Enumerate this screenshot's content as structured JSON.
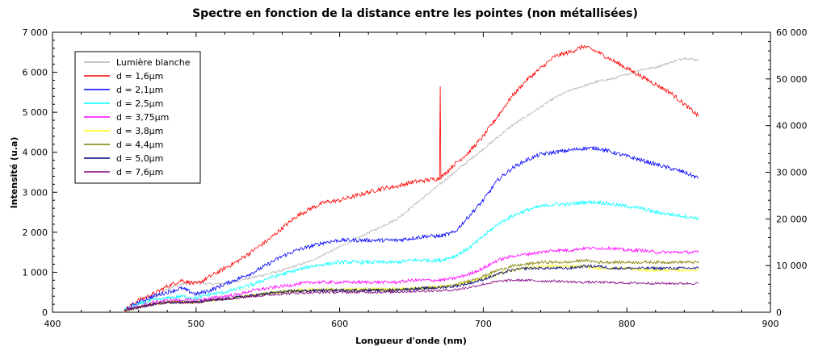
{
  "chart_data": {
    "type": "line",
    "title": "Spectre en fonction de la distance entre les pointes (non métallisées)",
    "xlabel": "Longueur d'onde (nm)",
    "ylabel": "Intensité (u.a)",
    "xlim": [
      400,
      900
    ],
    "ylim": [
      0,
      7000
    ],
    "y2lim": [
      0,
      60000
    ],
    "x_ticks": [
      400,
      500,
      600,
      700,
      800,
      900
    ],
    "x_tick_labels": [
      "400",
      "500",
      "600",
      "700",
      "800",
      "900"
    ],
    "y_ticks": [
      0,
      1000,
      2000,
      3000,
      4000,
      5000,
      6000,
      7000
    ],
    "y_tick_labels": [
      "0",
      "1 000",
      "2 000",
      "3 000",
      "4 000",
      "5 000",
      "6 000",
      "7 000"
    ],
    "y2_ticks": [
      0,
      10000,
      20000,
      30000,
      40000,
      50000,
      60000
    ],
    "y2_tick_labels": [
      "0",
      "10 000",
      "20 000",
      "30 000",
      "40 000",
      "50 000",
      "60 000"
    ],
    "grid": false,
    "legend_position": "top-left",
    "x": [
      450,
      460,
      470,
      480,
      490,
      500,
      510,
      520,
      530,
      540,
      550,
      560,
      570,
      580,
      590,
      600,
      610,
      620,
      630,
      640,
      650,
      660,
      670,
      680,
      690,
      700,
      710,
      720,
      730,
      740,
      750,
      760,
      770,
      780,
      790,
      800,
      810,
      820,
      830,
      840,
      850
    ],
    "series": [
      {
        "name": "Lumière blanche",
        "color": "#b4b4b4",
        "axis": "right",
        "noise": 250,
        "values": [
          0,
          1000,
          3000,
          5000,
          6000,
          6500,
          6000,
          6200,
          6800,
          7500,
          8200,
          9000,
          10000,
          11000,
          12500,
          14000,
          15500,
          17000,
          18500,
          20000,
          22500,
          25000,
          27500,
          30000,
          32500,
          35000,
          37500,
          40000,
          42000,
          44000,
          46000,
          47500,
          48500,
          49500,
          50000,
          51000,
          52000,
          52500,
          53500,
          54500,
          54000
        ]
      },
      {
        "name": "d = 1,6µm",
        "color": "#ff0000",
        "axis": "left",
        "noise": 55,
        "values": [
          50,
          300,
          450,
          650,
          800,
          700,
          900,
          1100,
          1300,
          1550,
          1800,
          2100,
          2400,
          2600,
          2750,
          2800,
          2900,
          3000,
          3100,
          3150,
          3250,
          3300,
          3350,
          3700,
          4000,
          4400,
          4900,
          5400,
          5800,
          6100,
          6400,
          6500,
          6650,
          6500,
          6300,
          6100,
          5900,
          5700,
          5500,
          5200,
          4900
        ]
      },
      {
        "name": "d = 2,1µm",
        "color": "#0000ff",
        "axis": "left",
        "noise": 50,
        "values": [
          50,
          250,
          400,
          500,
          600,
          450,
          550,
          700,
          850,
          1000,
          1200,
          1400,
          1550,
          1650,
          1750,
          1800,
          1800,
          1800,
          1800,
          1800,
          1850,
          1900,
          1900,
          2000,
          2400,
          2800,
          3300,
          3600,
          3800,
          3950,
          4000,
          4050,
          4100,
          4100,
          4000,
          3900,
          3800,
          3700,
          3600,
          3500,
          3350
        ]
      },
      {
        "name": "d = 2,5µm",
        "color": "#00ffff",
        "axis": "left",
        "noise": 45,
        "values": [
          50,
          200,
          300,
          350,
          400,
          350,
          450,
          500,
          600,
          700,
          850,
          950,
          1050,
          1150,
          1200,
          1250,
          1250,
          1250,
          1250,
          1250,
          1300,
          1300,
          1300,
          1400,
          1600,
          1900,
          2200,
          2400,
          2550,
          2650,
          2700,
          2700,
          2750,
          2750,
          2700,
          2650,
          2600,
          2500,
          2450,
          2400,
          2350
        ]
      },
      {
        "name": "d = 3,75µm",
        "color": "#ff00ff",
        "axis": "left",
        "noise": 40,
        "values": [
          50,
          150,
          250,
          300,
          300,
          300,
          350,
          400,
          450,
          550,
          600,
          650,
          700,
          750,
          750,
          750,
          750,
          750,
          750,
          750,
          800,
          800,
          800,
          850,
          950,
          1100,
          1300,
          1400,
          1450,
          1500,
          1550,
          1550,
          1600,
          1600,
          1600,
          1550,
          1550,
          1500,
          1500,
          1500,
          1500
        ]
      },
      {
        "name": "d = 3,8µm",
        "color": "#ffff00",
        "axis": "left",
        "noise": 35,
        "values": [
          50,
          120,
          200,
          250,
          250,
          250,
          300,
          330,
          380,
          420,
          480,
          520,
          550,
          570,
          580,
          580,
          580,
          580,
          580,
          590,
          600,
          620,
          640,
          680,
          750,
          850,
          950,
          1050,
          1100,
          1150,
          1150,
          1150,
          1150,
          1100,
          1100,
          1100,
          1050,
          1050,
          1050,
          1050,
          1050
        ]
      },
      {
        "name": "d = 4,4µm",
        "color": "#808000",
        "axis": "left",
        "noise": 35,
        "values": [
          50,
          120,
          200,
          250,
          250,
          250,
          300,
          330,
          380,
          420,
          470,
          510,
          530,
          540,
          550,
          550,
          550,
          550,
          550,
          560,
          580,
          600,
          620,
          680,
          780,
          900,
          1050,
          1150,
          1200,
          1250,
          1250,
          1250,
          1300,
          1250,
          1250,
          1250,
          1250,
          1250,
          1250,
          1250,
          1250
        ]
      },
      {
        "name": "d = 5,0µm",
        "color": "#000080",
        "axis": "left",
        "noise": 35,
        "values": [
          50,
          120,
          200,
          250,
          250,
          250,
          300,
          330,
          380,
          420,
          470,
          510,
          530,
          540,
          550,
          550,
          550,
          550,
          550,
          560,
          580,
          600,
          620,
          650,
          720,
          820,
          950,
          1050,
          1100,
          1100,
          1100,
          1100,
          1150,
          1150,
          1100,
          1100,
          1100,
          1100,
          1100,
          1100,
          1100
        ]
      },
      {
        "name": "d = 7,6µm",
        "color": "#800080",
        "axis": "left",
        "noise": 30,
        "values": [
          50,
          120,
          200,
          250,
          250,
          250,
          300,
          330,
          370,
          400,
          430,
          460,
          480,
          490,
          500,
          500,
          500,
          500,
          500,
          510,
          520,
          530,
          540,
          560,
          620,
          700,
          770,
          800,
          800,
          780,
          780,
          760,
          750,
          750,
          740,
          730,
          730,
          720,
          720,
          720,
          720
        ]
      }
    ],
    "annotations": [
      {
        "type": "spike",
        "series": "d = 1,6µm",
        "x": 670,
        "y": 5650
      }
    ]
  }
}
